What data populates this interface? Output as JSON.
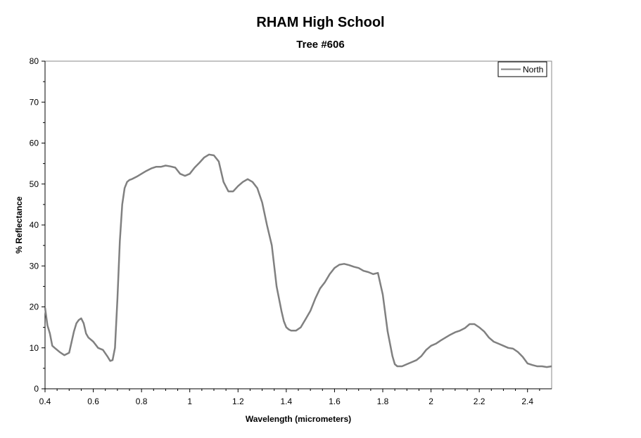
{
  "chart_data": {
    "type": "line",
    "title": "RHAM High School",
    "subtitle": "Tree #606",
    "xlabel": "Wavelength (micrometers)",
    "ylabel": "% Reflectance",
    "xlim": [
      0.4,
      2.5
    ],
    "ylim": [
      0,
      80
    ],
    "x_ticks": [
      0.4,
      0.6,
      0.8,
      1,
      1.2,
      1.4,
      1.6,
      1.8,
      2,
      2.2,
      2.4
    ],
    "x_tick_labels": [
      "0.4",
      "0.6",
      "0.8",
      "1",
      "1.2",
      "1.4",
      "1.6",
      "1.8",
      "2",
      "2.2",
      "2.4"
    ],
    "y_ticks": [
      0,
      10,
      20,
      30,
      40,
      50,
      60,
      70,
      80
    ],
    "y_tick_labels": [
      "0",
      "10",
      "20",
      "30",
      "40",
      "50",
      "60",
      "70",
      "80"
    ],
    "grid": false,
    "legend_position": "top-right",
    "series": [
      {
        "name": "North",
        "color": "#808080",
        "x": [
          0.4,
          0.41,
          0.42,
          0.43,
          0.44,
          0.46,
          0.48,
          0.5,
          0.52,
          0.53,
          0.54,
          0.55,
          0.56,
          0.57,
          0.58,
          0.6,
          0.62,
          0.64,
          0.66,
          0.67,
          0.68,
          0.69,
          0.7,
          0.71,
          0.72,
          0.73,
          0.74,
          0.75,
          0.76,
          0.78,
          0.8,
          0.82,
          0.84,
          0.86,
          0.88,
          0.9,
          0.92,
          0.94,
          0.96,
          0.98,
          1.0,
          1.02,
          1.04,
          1.06,
          1.08,
          1.1,
          1.12,
          1.14,
          1.16,
          1.18,
          1.2,
          1.22,
          1.24,
          1.26,
          1.28,
          1.3,
          1.32,
          1.34,
          1.36,
          1.38,
          1.39,
          1.4,
          1.41,
          1.42,
          1.44,
          1.46,
          1.48,
          1.5,
          1.52,
          1.54,
          1.56,
          1.58,
          1.6,
          1.62,
          1.64,
          1.66,
          1.68,
          1.7,
          1.72,
          1.74,
          1.76,
          1.78,
          1.8,
          1.82,
          1.84,
          1.85,
          1.86,
          1.88,
          1.9,
          1.92,
          1.94,
          1.96,
          1.98,
          2.0,
          2.02,
          2.04,
          2.06,
          2.08,
          2.1,
          2.12,
          2.14,
          2.16,
          2.18,
          2.2,
          2.22,
          2.24,
          2.26,
          2.28,
          2.3,
          2.32,
          2.34,
          2.36,
          2.38,
          2.4,
          2.42,
          2.44,
          2.46,
          2.48,
          2.5
        ],
        "y": [
          19.8,
          15.5,
          13.5,
          10.5,
          10.0,
          9.0,
          8.2,
          8.8,
          14.0,
          16.0,
          16.8,
          17.2,
          16.0,
          13.5,
          12.5,
          11.5,
          10.0,
          9.5,
          7.8,
          6.8,
          7.0,
          10.0,
          22.0,
          36.0,
          45.0,
          49.0,
          50.5,
          51.0,
          51.2,
          51.8,
          52.5,
          53.2,
          53.8,
          54.2,
          54.2,
          54.5,
          54.3,
          54.0,
          52.5,
          52.0,
          52.5,
          54.0,
          55.2,
          56.5,
          57.2,
          57.0,
          55.5,
          50.5,
          48.2,
          48.2,
          49.5,
          50.5,
          51.2,
          50.5,
          49.0,
          45.5,
          40.0,
          35.0,
          25.0,
          19.0,
          16.5,
          15.0,
          14.5,
          14.2,
          14.2,
          15.0,
          17.0,
          19.0,
          22.0,
          24.5,
          26.0,
          28.0,
          29.5,
          30.3,
          30.5,
          30.2,
          29.8,
          29.5,
          28.8,
          28.5,
          28.0,
          28.3,
          23.0,
          14.0,
          8.0,
          6.0,
          5.5,
          5.5,
          6.0,
          6.5,
          7.0,
          8.0,
          9.5,
          10.5,
          11.0,
          11.8,
          12.5,
          13.2,
          13.8,
          14.2,
          14.8,
          15.8,
          15.8,
          15.0,
          14.0,
          12.5,
          11.5,
          11.0,
          10.5,
          10.0,
          9.8,
          9.0,
          7.8,
          6.2,
          5.8,
          5.5,
          5.5,
          5.3,
          5.5
        ]
      }
    ]
  }
}
